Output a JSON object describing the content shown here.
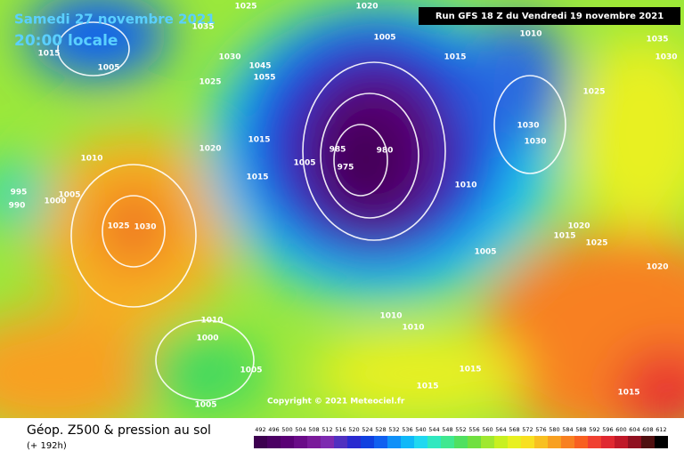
{
  "header": {
    "date": "Samedi 27 novembre 2021",
    "time": "20:00 locale",
    "run": "Run GFS 18 Z du Vendredi 19 novembre 2021"
  },
  "copyright": "Copyright © 2021 Meteociel.fr",
  "footer": {
    "title": "Géop. Z500 & pression au sol",
    "lead": "(+ 192h)"
  },
  "isobar_labels": [
    "1015",
    "1005",
    "1035",
    "1025",
    "1020",
    "1005",
    "1010",
    "1015",
    "1035",
    "1030",
    "1030",
    "1045",
    "1055",
    "1025",
    "1025",
    "1030",
    "1030",
    "1015",
    "1020",
    "1010",
    "1005",
    "985",
    "975",
    "980",
    "1015",
    "1010",
    "995",
    "1005",
    "1000",
    "990",
    "1025",
    "1030",
    "1020",
    "1015",
    "1025",
    "1005",
    "1020",
    "1010",
    "1010",
    "1010",
    "1000",
    "1005",
    "1015",
    "1015",
    "1005",
    "1015"
  ],
  "legend": {
    "values": [
      492,
      496,
      500,
      504,
      508,
      512,
      516,
      520,
      524,
      528,
      532,
      536,
      540,
      544,
      548,
      552,
      556,
      560,
      564,
      568,
      572,
      576,
      580,
      584,
      588,
      592,
      596,
      600,
      604,
      608,
      612
    ],
    "colors": [
      "#3d0050",
      "#4b0063",
      "#5a0075",
      "#6a0b88",
      "#7a1a9a",
      "#7d2ab0",
      "#5030c0",
      "#2a2ad0",
      "#1040e0",
      "#1060f0",
      "#1090f8",
      "#10b8f8",
      "#20d8f0",
      "#30e8c0",
      "#40e890",
      "#50e060",
      "#70e040",
      "#a0e830",
      "#c8f020",
      "#e8f020",
      "#f8e020",
      "#f8c020",
      "#f8a020",
      "#f88020",
      "#f86020",
      "#f04030",
      "#e02830",
      "#c01828",
      "#901020",
      "#501010",
      "#000000"
    ]
  }
}
